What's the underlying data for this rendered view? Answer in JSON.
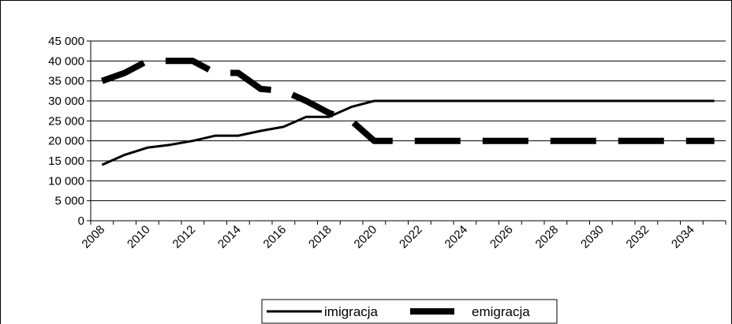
{
  "chart_data": {
    "type": "line",
    "title": "",
    "xlabel": "",
    "ylabel": "",
    "x": [
      2008,
      2009,
      2010,
      2011,
      2012,
      2013,
      2014,
      2015,
      2016,
      2017,
      2018,
      2019,
      2020,
      2021,
      2022,
      2023,
      2024,
      2025,
      2026,
      2027,
      2028,
      2029,
      2030,
      2031,
      2032,
      2033,
      2034,
      2035
    ],
    "x_tick_labels": [
      "2008",
      "2010",
      "2012",
      "2014",
      "2016",
      "2018",
      "2020",
      "2022",
      "2024",
      "2026",
      "2028",
      "2030",
      "2032",
      "2034"
    ],
    "y_tick_labels": [
      "0",
      "5 000",
      "10 000",
      "15 000",
      "20 000",
      "25 000",
      "30 000",
      "35 000",
      "40 000",
      "45 000"
    ],
    "ylim": [
      0,
      45000
    ],
    "grid": "horizontal",
    "legend_position": "bottom",
    "series": [
      {
        "name": "imigracja",
        "style": "solid",
        "color": "#000000",
        "values": [
          14000,
          16500,
          18300,
          19000,
          20000,
          21300,
          21300,
          22500,
          23500,
          26000,
          26000,
          28500,
          30000,
          30000,
          30000,
          30000,
          30000,
          30000,
          30000,
          30000,
          30000,
          30000,
          30000,
          30000,
          30000,
          30000,
          30000,
          30000
        ]
      },
      {
        "name": "emigracja",
        "style": "dashed",
        "color": "#000000",
        "values": [
          35000,
          37000,
          40000,
          40000,
          40000,
          37000,
          37000,
          33000,
          32500,
          30000,
          27000,
          25000,
          20000,
          20000,
          20000,
          20000,
          20000,
          20000,
          20000,
          20000,
          20000,
          20000,
          20000,
          20000,
          20000,
          20000,
          20000,
          20000
        ]
      }
    ]
  }
}
